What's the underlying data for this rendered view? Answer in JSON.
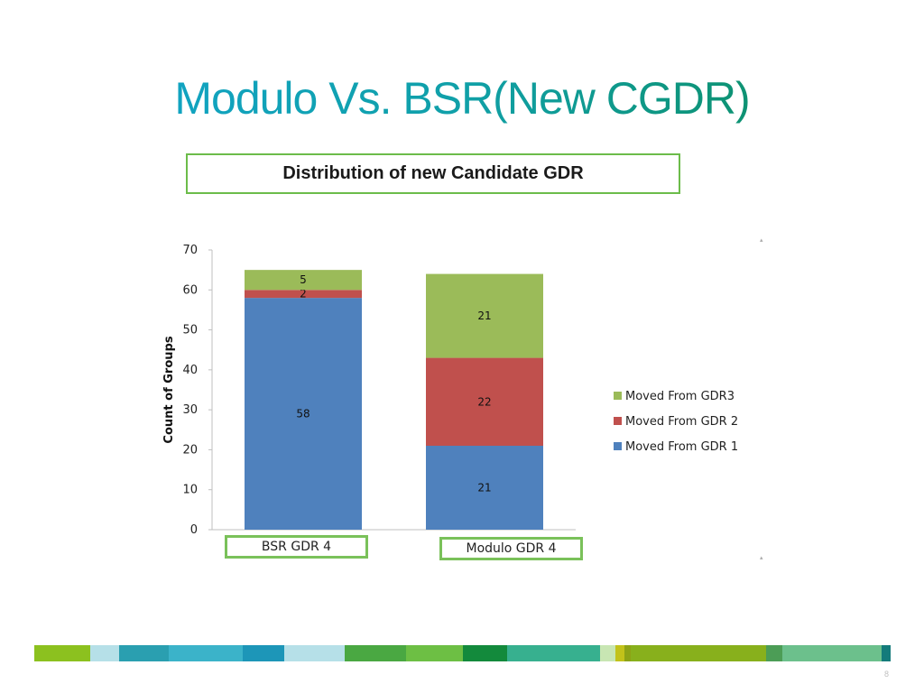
{
  "slide": {
    "title": "Modulo Vs. BSR(New CGDR)",
    "subtitle": "Distribution of new Candidate GDR",
    "page_number": "8"
  },
  "chart_data": {
    "type": "bar",
    "stacked": true,
    "categories": [
      "BSR GDR 4",
      "Modulo GDR 4"
    ],
    "series": [
      {
        "name": "Moved From GDR 1",
        "values": [
          58,
          21
        ],
        "color": "#4f81bd"
      },
      {
        "name": "Moved From GDR 2",
        "values": [
          2,
          22
        ],
        "color": "#c0504d"
      },
      {
        "name": "Moved From GDR3",
        "values": [
          5,
          21
        ],
        "color": "#9bbb59"
      }
    ],
    "ylabel": "Count of Groups",
    "ylim": [
      0,
      70
    ],
    "yticks": [
      0,
      10,
      20,
      30,
      40,
      50,
      60,
      70
    ],
    "grid": false,
    "legend": "right"
  },
  "colors": {
    "box_border": "#7ac15a",
    "footer": [
      "#8cc11f",
      "#b6e0e8",
      "#2a9fb0",
      "#3bb3c9",
      "#1d96b8",
      "#b6e0e8",
      "#4aa842",
      "#6dbf44",
      "#138a3c",
      "#37b08f",
      "#c8e6b3",
      "#c2c21a",
      "#8da316",
      "#88b01c",
      "#4c9d56",
      "#6cc08c",
      "#147b7b"
    ]
  }
}
